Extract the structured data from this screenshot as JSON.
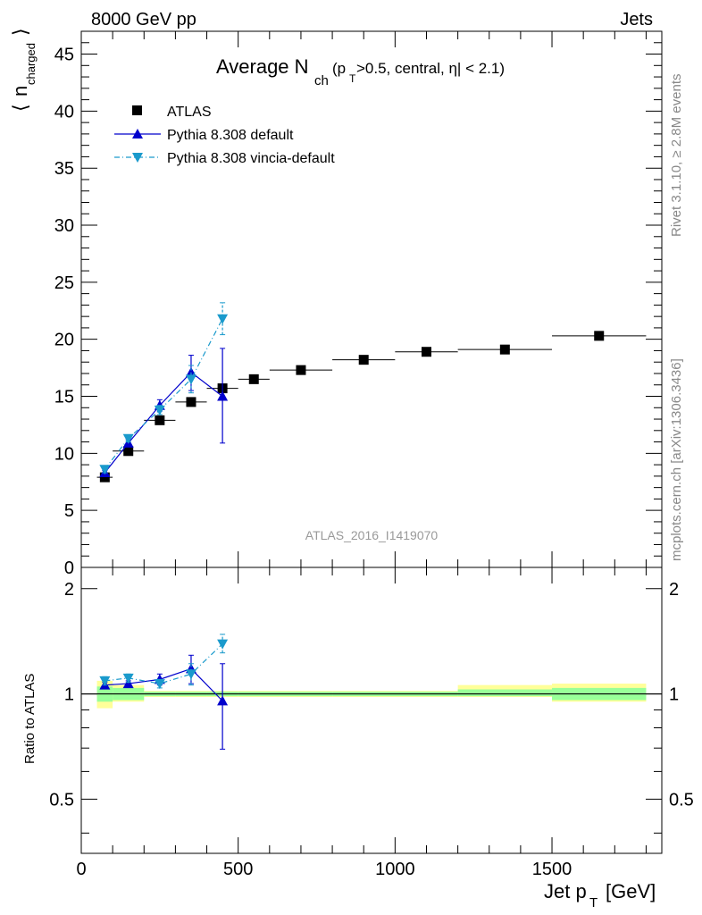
{
  "header": {
    "left": "8000 GeV pp",
    "right": "Jets"
  },
  "side": {
    "version": "Rivet 3.1.10, ≥ 2.8M events",
    "source": "mcplots.cern.ch [arXiv:1306.3436]"
  },
  "chart_data": [
    {
      "type": "scatter",
      "title_main": "Average N",
      "title_sub": "ch",
      "title_cond": "(p",
      "title_cond_sub": "T",
      "title_cond_rest": ">0.5, central, η| < 2.1)",
      "ylabel": "n",
      "ylabel_sub": "charged",
      "xlim": [
        0,
        1850
      ],
      "ylim": [
        0,
        47
      ],
      "yticks": [
        0,
        5,
        10,
        15,
        20,
        25,
        30,
        35,
        40,
        45
      ],
      "xticks": [
        0,
        500,
        1000,
        1500
      ],
      "watermark": "ATLAS_2016_I1419070",
      "legend_position": "top-left",
      "series": [
        {
          "name": "ATLAS",
          "color": "#000000",
          "marker": "square",
          "points": [
            {
              "x": 75,
              "y": 7.9,
              "xerr": [
                50,
                100
              ]
            },
            {
              "x": 150,
              "y": 10.2,
              "xerr": [
                100,
                200
              ]
            },
            {
              "x": 250,
              "y": 12.9,
              "xerr": [
                200,
                300
              ]
            },
            {
              "x": 350,
              "y": 14.5,
              "xerr": [
                300,
                400
              ]
            },
            {
              "x": 450,
              "y": 15.7,
              "xerr": [
                400,
                500
              ]
            },
            {
              "x": 550,
              "y": 16.5,
              "xerr": [
                500,
                600
              ]
            },
            {
              "x": 700,
              "y": 17.3,
              "xerr": [
                600,
                800
              ]
            },
            {
              "x": 900,
              "y": 18.2,
              "xerr": [
                800,
                1000
              ]
            },
            {
              "x": 1100,
              "y": 18.9,
              "xerr": [
                1000,
                1200
              ]
            },
            {
              "x": 1350,
              "y": 19.1,
              "xerr": [
                1200,
                1500
              ]
            },
            {
              "x": 1650,
              "y": 20.3,
              "xerr": [
                1500,
                1800
              ]
            }
          ]
        },
        {
          "name": "Pythia 8.308 default",
          "color": "#0000cc",
          "marker": "triangle-up",
          "line": "solid",
          "points": [
            {
              "x": 75,
              "y": 8.3,
              "yerr": [
                8.1,
                8.5
              ]
            },
            {
              "x": 150,
              "y": 10.9,
              "yerr": [
                10.6,
                11.2
              ]
            },
            {
              "x": 250,
              "y": 14.2,
              "yerr": [
                13.7,
                14.7
              ]
            },
            {
              "x": 350,
              "y": 17.1,
              "yerr": [
                15.5,
                18.6
              ]
            },
            {
              "x": 450,
              "y": 15.0,
              "yerr": [
                10.9,
                19.2
              ]
            }
          ]
        },
        {
          "name": "Pythia 8.308 vincia-default",
          "color": "#1a9acc",
          "marker": "triangle-down",
          "line": "dashdot",
          "points": [
            {
              "x": 75,
              "y": 8.6,
              "yerr": [
                8.3,
                8.9
              ]
            },
            {
              "x": 150,
              "y": 11.3,
              "yerr": [
                11.0,
                11.6
              ]
            },
            {
              "x": 250,
              "y": 13.8,
              "yerr": [
                13.4,
                14.2
              ]
            },
            {
              "x": 350,
              "y": 16.5,
              "yerr": [
                15.3,
                17.7
              ]
            },
            {
              "x": 450,
              "y": 21.8,
              "yerr": [
                20.4,
                23.2
              ]
            }
          ]
        }
      ]
    },
    {
      "type": "scatter",
      "ylabel": "Ratio to ATLAS",
      "xlabel": "Jet p",
      "xlabel_sub": "T",
      "xlabel_unit": "[GeV]",
      "xlim": [
        0,
        1850
      ],
      "ylim": [
        0.35,
        2.3
      ],
      "ytick_labels": [
        {
          "v": 0.5,
          "label": "0.5"
        },
        {
          "v": 1,
          "label": "1"
        },
        {
          "v": 2,
          "label": "2"
        }
      ],
      "xtick_labels": [
        {
          "v": 0,
          "label": "0"
        },
        {
          "v": 500,
          "label": "500"
        },
        {
          "v": 1000,
          "label": "1000"
        },
        {
          "v": 1500,
          "label": "1500"
        }
      ],
      "bands": [
        {
          "x0": 50,
          "x1": 100,
          "inner": [
            0.95,
            1.05
          ],
          "outer": [
            0.91,
            1.09
          ]
        },
        {
          "x0": 100,
          "x1": 200,
          "inner": [
            0.96,
            1.04
          ],
          "outer": [
            0.95,
            1.06
          ]
        },
        {
          "x0": 200,
          "x1": 300,
          "inner": [
            0.985,
            1.015
          ],
          "outer": [
            0.98,
            1.02
          ]
        },
        {
          "x0": 300,
          "x1": 400,
          "inner": [
            0.985,
            1.015
          ],
          "outer": [
            0.98,
            1.02
          ]
        },
        {
          "x0": 400,
          "x1": 500,
          "inner": [
            0.985,
            1.015
          ],
          "outer": [
            0.98,
            1.02
          ]
        },
        {
          "x0": 500,
          "x1": 800,
          "inner": [
            0.985,
            1.015
          ],
          "outer": [
            0.98,
            1.02
          ]
        },
        {
          "x0": 800,
          "x1": 1200,
          "inner": [
            0.985,
            1.015
          ],
          "outer": [
            0.98,
            1.02
          ]
        },
        {
          "x0": 1200,
          "x1": 1500,
          "inner": [
            0.985,
            1.03
          ],
          "outer": [
            0.98,
            1.06
          ]
        },
        {
          "x0": 1500,
          "x1": 1800,
          "inner": [
            0.96,
            1.04
          ],
          "outer": [
            0.95,
            1.07
          ]
        }
      ],
      "series": [
        {
          "name": "Pythia 8.308 default",
          "color": "#0000cc",
          "marker": "triangle-up",
          "line": "solid",
          "points": [
            {
              "x": 75,
              "y": 1.06,
              "yerr": [
                1.04,
                1.08
              ]
            },
            {
              "x": 150,
              "y": 1.07,
              "yerr": [
                1.05,
                1.09
              ]
            },
            {
              "x": 250,
              "y": 1.1,
              "yerr": [
                1.06,
                1.14
              ]
            },
            {
              "x": 350,
              "y": 1.18,
              "yerr": [
                1.07,
                1.29
              ]
            },
            {
              "x": 450,
              "y": 0.955,
              "yerr": [
                0.695,
                1.22
              ]
            }
          ]
        },
        {
          "name": "Pythia 8.308 vincia-default",
          "color": "#1a9acc",
          "marker": "triangle-down",
          "line": "dashdot",
          "points": [
            {
              "x": 75,
              "y": 1.09,
              "yerr": [
                1.06,
                1.12
              ]
            },
            {
              "x": 150,
              "y": 1.11,
              "yerr": [
                1.08,
                1.14
              ]
            },
            {
              "x": 250,
              "y": 1.07,
              "yerr": [
                1.04,
                1.1
              ]
            },
            {
              "x": 350,
              "y": 1.14,
              "yerr": [
                1.06,
                1.22
              ]
            },
            {
              "x": 450,
              "y": 1.39,
              "yerr": [
                1.31,
                1.48
              ]
            }
          ]
        }
      ]
    }
  ]
}
